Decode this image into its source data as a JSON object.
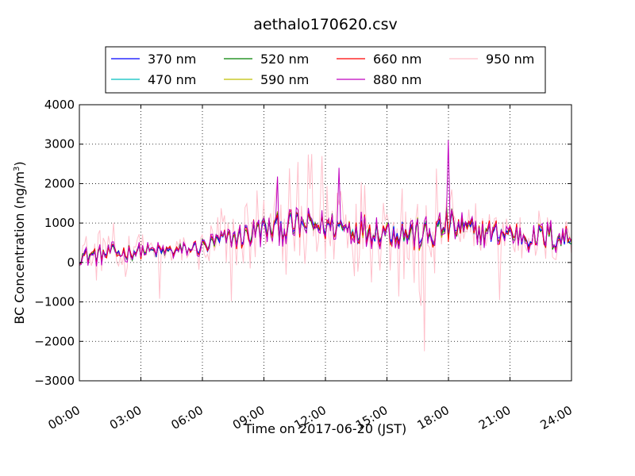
{
  "chart_data": {
    "type": "line",
    "title": "aethalo170620.csv",
    "xlabel": "Time on 2017-06-20 (JST)",
    "ylabel_main": "BC Concentration (ng/m",
    "ylabel_sup": "3",
    "ylabel_tail": ")",
    "xlim": [
      0,
      24
    ],
    "ylim": [
      -3000,
      4000
    ],
    "x_ticks": [
      0,
      3,
      6,
      9,
      12,
      15,
      18,
      21,
      24
    ],
    "x_tick_labels": [
      "00:00",
      "03:00",
      "06:00",
      "09:00",
      "12:00",
      "15:00",
      "18:00",
      "21:00",
      "24:00"
    ],
    "y_ticks": [
      -3000,
      -2000,
      -1000,
      0,
      1000,
      2000,
      3000,
      4000
    ],
    "y_tick_labels": [
      "−3000",
      "−2000",
      "−1000",
      "0",
      "1000",
      "2000",
      "3000",
      "4000"
    ],
    "grid": true,
    "legend_position": "top-center, above plot",
    "series_step_hours": 0.0833,
    "series": [
      {
        "name": "370 nm",
        "color": "#0000ff"
      },
      {
        "name": "470 nm",
        "color": "#00bfbf"
      },
      {
        "name": "520 nm",
        "color": "#008000"
      },
      {
        "name": "590 nm",
        "color": "#bfbf00"
      },
      {
        "name": "660 nm",
        "color": "#ff0000"
      },
      {
        "name": "880 nm",
        "color": "#bf00bf"
      },
      {
        "name": "950 nm",
        "color": "#ffc0cb"
      }
    ],
    "envelope": {
      "hours": [
        0,
        1,
        2,
        3,
        4,
        5,
        6,
        7,
        8,
        9,
        10,
        11,
        12,
        13,
        14,
        15,
        16,
        17,
        18,
        19,
        20,
        21,
        22,
        23,
        24
      ],
      "mean_blue": [
        150,
        200,
        250,
        300,
        280,
        300,
        400,
        550,
        700,
        850,
        900,
        950,
        950,
        900,
        850,
        800,
        750,
        650,
        950,
        800,
        750,
        750,
        650,
        650,
        600
      ],
      "spread_blue": [
        250,
        250,
        250,
        200,
        200,
        200,
        250,
        300,
        350,
        400,
        400,
        400,
        400,
        400,
        400,
        400,
        450,
        450,
        500,
        400,
        350,
        350,
        350,
        400,
        400
      ],
      "spread_pink": [
        700,
        800,
        900,
        600,
        500,
        500,
        900,
        1000,
        1200,
        1500,
        1800,
        1900,
        1700,
        1600,
        1500,
        1500,
        2200,
        1500,
        1300,
        1000,
        900,
        800,
        800,
        700,
        700
      ],
      "spikes": [
        {
          "name": "880 nm",
          "x": 18.0,
          "y": 3100
        },
        {
          "name": "950 nm",
          "x": 16.85,
          "y": -2250
        },
        {
          "name": "950 nm",
          "x": 16.65,
          "y": -1100
        },
        {
          "name": "950 nm",
          "x": 11.3,
          "y": 2750
        },
        {
          "name": "950 nm",
          "x": 11.8,
          "y": 2700
        },
        {
          "name": "880 nm",
          "x": 12.7,
          "y": 2400
        },
        {
          "name": "950 nm",
          "x": 17.45,
          "y": 2380
        },
        {
          "name": "880 nm",
          "x": 9.65,
          "y": 2180
        },
        {
          "name": "950 nm",
          "x": 7.4,
          "y": -980
        },
        {
          "name": "950 nm",
          "x": 3.95,
          "y": -920
        },
        {
          "name": "950 nm",
          "x": 20.5,
          "y": -950
        }
      ]
    }
  }
}
